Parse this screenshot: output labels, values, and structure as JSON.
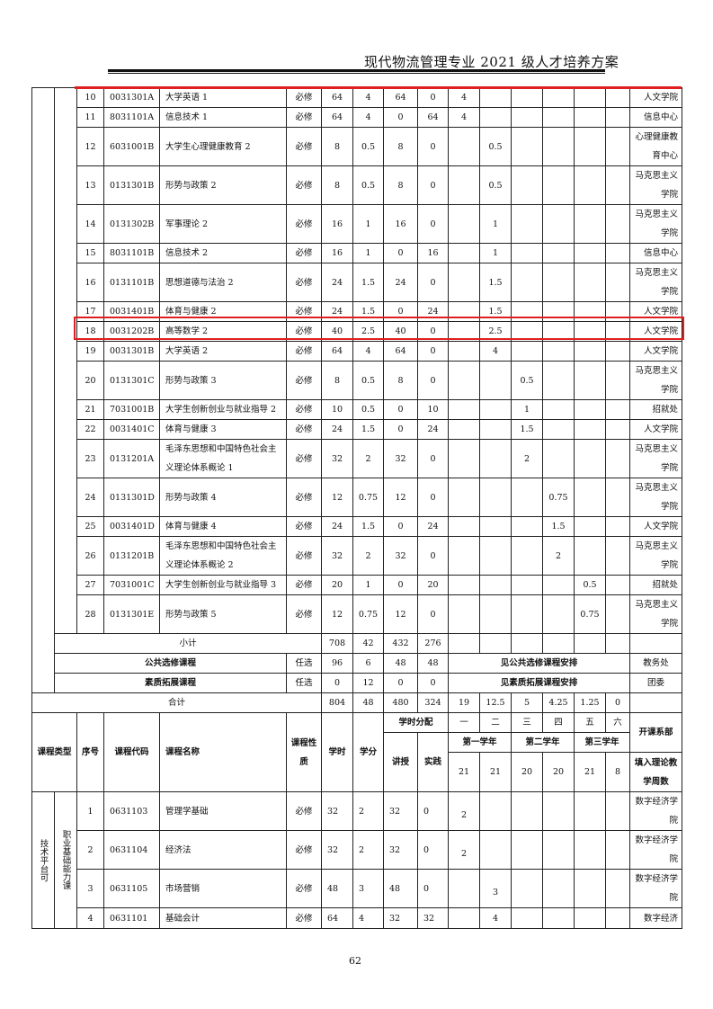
{
  "header": {
    "title": "现代物流管理专业 2021 级人才培养方案"
  },
  "page_number": "62",
  "colors": {
    "highlight": "#e02020"
  },
  "top_rows": [
    {
      "seq": "10",
      "code": "0031301A",
      "name": "大学英语 1",
      "nature": "必修",
      "hours": "64",
      "credits": "4",
      "lecture": "64",
      "practice": "0",
      "sem": [
        "4",
        "",
        "",
        "",
        "",
        ""
      ],
      "dept": "人文学院"
    },
    {
      "seq": "11",
      "code": "8031101A",
      "name": "信息技术 1",
      "nature": "必修",
      "hours": "64",
      "credits": "4",
      "lecture": "0",
      "practice": "64",
      "sem": [
        "4",
        "",
        "",
        "",
        "",
        ""
      ],
      "dept": "信息中心"
    },
    {
      "seq": "12",
      "code": "6031001B",
      "name": "大学生心理健康教育 2",
      "nature": "必修",
      "hours": "8",
      "credits": "0.5",
      "lecture": "8",
      "practice": "0",
      "sem": [
        "",
        "0.5",
        "",
        "",
        "",
        ""
      ],
      "dept": "心理健康教育中心"
    },
    {
      "seq": "13",
      "code": "0131301B",
      "name": "形势与政策 2",
      "nature": "必修",
      "hours": "8",
      "credits": "0.5",
      "lecture": "8",
      "practice": "0",
      "sem": [
        "",
        "0.5",
        "",
        "",
        "",
        ""
      ],
      "dept": "马克思主义学院"
    },
    {
      "seq": "14",
      "code": "0131302B",
      "name": "军事理论 2",
      "nature": "必修",
      "hours": "16",
      "credits": "1",
      "lecture": "16",
      "practice": "0",
      "sem": [
        "",
        "1",
        "",
        "",
        "",
        ""
      ],
      "dept": "马克思主义学院"
    },
    {
      "seq": "15",
      "code": "8031101B",
      "name": "信息技术 2",
      "nature": "必修",
      "hours": "16",
      "credits": "1",
      "lecture": "0",
      "practice": "16",
      "sem": [
        "",
        "1",
        "",
        "",
        "",
        ""
      ],
      "dept": "信息中心"
    },
    {
      "seq": "16",
      "code": "0131101B",
      "name": "思想道德与法治 2",
      "nature": "必修",
      "hours": "24",
      "credits": "1.5",
      "lecture": "24",
      "practice": "0",
      "sem": [
        "",
        "1.5",
        "",
        "",
        "",
        ""
      ],
      "dept": "马克思主义学院"
    },
    {
      "seq": "17",
      "code": "0031401B",
      "name": "体育与健康 2",
      "nature": "必修",
      "hours": "24",
      "credits": "1.5",
      "lecture": "0",
      "practice": "24",
      "sem": [
        "",
        "1.5",
        "",
        "",
        "",
        ""
      ],
      "dept": "人文学院"
    },
    {
      "seq": "18",
      "code": "0031202B",
      "name": "高等数学 2",
      "nature": "必修",
      "hours": "40",
      "credits": "2.5",
      "lecture": "40",
      "practice": "0",
      "sem": [
        "",
        "2.5",
        "",
        "",
        "",
        ""
      ],
      "dept": "人文学院"
    },
    {
      "seq": "19",
      "code": "0031301B",
      "name": "大学英语 2",
      "nature": "必修",
      "hours": "64",
      "credits": "4",
      "lecture": "64",
      "practice": "0",
      "sem": [
        "",
        "4",
        "",
        "",
        "",
        ""
      ],
      "dept": "人文学院"
    },
    {
      "seq": "20",
      "code": "0131301C",
      "name": "形势与政策 3",
      "nature": "必修",
      "hours": "8",
      "credits": "0.5",
      "lecture": "8",
      "practice": "0",
      "sem": [
        "",
        "",
        "0.5",
        "",
        "",
        ""
      ],
      "dept": "马克思主义学院"
    },
    {
      "seq": "21",
      "code": "7031001B",
      "name": "大学生创新创业与就业指导 2",
      "nature": "必修",
      "hours": "10",
      "credits": "0.5",
      "lecture": "0",
      "practice": "10",
      "sem": [
        "",
        "",
        "1",
        "",
        "",
        ""
      ],
      "dept": "招就处"
    },
    {
      "seq": "22",
      "code": "0031401C",
      "name": "体育与健康 3",
      "nature": "必修",
      "hours": "24",
      "credits": "1.5",
      "lecture": "0",
      "practice": "24",
      "sem": [
        "",
        "",
        "1.5",
        "",
        "",
        ""
      ],
      "dept": "人文学院"
    },
    {
      "seq": "23",
      "code": "0131201A",
      "name": "毛泽东思想和中国特色社会主义理论体系概论 1",
      "nature": "必修",
      "hours": "32",
      "credits": "2",
      "lecture": "32",
      "practice": "0",
      "sem": [
        "",
        "",
        "2",
        "",
        "",
        ""
      ],
      "dept": "马克思主义学院"
    },
    {
      "seq": "24",
      "code": "0131301D",
      "name": "形势与政策 4",
      "nature": "必修",
      "hours": "12",
      "credits": "0.75",
      "lecture": "12",
      "practice": "0",
      "sem": [
        "",
        "",
        "",
        "0.75",
        "",
        ""
      ],
      "dept": "马克思主义学院"
    },
    {
      "seq": "25",
      "code": "0031401D",
      "name": "体育与健康 4",
      "nature": "必修",
      "hours": "24",
      "credits": "1.5",
      "lecture": "0",
      "practice": "24",
      "sem": [
        "",
        "",
        "",
        "1.5",
        "",
        ""
      ],
      "dept": "人文学院"
    },
    {
      "seq": "26",
      "code": "0131201B",
      "name": "毛泽东思想和中国特色社会主义理论体系概论 2",
      "nature": "必修",
      "hours": "32",
      "credits": "2",
      "lecture": "32",
      "practice": "0",
      "sem": [
        "",
        "",
        "",
        "2",
        "",
        ""
      ],
      "dept": "马克思主义学院"
    },
    {
      "seq": "27",
      "code": "7031001C",
      "name": "大学生创新创业与就业指导 3",
      "nature": "必修",
      "hours": "20",
      "credits": "1",
      "lecture": "0",
      "practice": "20",
      "sem": [
        "",
        "",
        "",
        "",
        "0.5",
        ""
      ],
      "dept": "招就处"
    },
    {
      "seq": "28",
      "code": "0131301E",
      "name": "形势与政策 5",
      "nature": "必修",
      "hours": "12",
      "credits": "0.75",
      "lecture": "12",
      "practice": "0",
      "sem": [
        "",
        "",
        "",
        "",
        "0.75",
        ""
      ],
      "dept": "马克思主义学院"
    }
  ],
  "subtotal": {
    "label": "小计",
    "hours": "708",
    "credits": "42",
    "lecture": "432",
    "practice": "276"
  },
  "public_elective": {
    "label": "公共选修课程",
    "nature": "任选",
    "hours": "96",
    "credits": "6",
    "lecture": "48",
    "practice": "48",
    "note": "见公共选修课程安排",
    "dept": "教务处"
  },
  "quality_ext": {
    "label": "素质拓展课程",
    "nature": "任选",
    "hours": "0",
    "credits": "12",
    "lecture": "0",
    "practice": "0",
    "note": "见素质拓展课程安排",
    "dept": "团委"
  },
  "total": {
    "label": "合计",
    "hours": "804",
    "credits": "48",
    "lecture": "480",
    "practice": "324",
    "sem": [
      "19",
      "12.5",
      "5",
      "4.25",
      "1.25",
      "0"
    ]
  },
  "table_header": {
    "type": "课程类型",
    "seq": "序号",
    "code": "课程代码",
    "name": "课程名称",
    "nature": "课程性质",
    "hours": "学时",
    "credits": "学分",
    "distribution": "学时分配",
    "lecture": "讲授",
    "practice": "实践",
    "semesters": [
      "一",
      "二",
      "三",
      "四",
      "五",
      "六"
    ],
    "years": [
      "第一学年",
      "第二学年",
      "第三学年"
    ],
    "weeks": [
      "21",
      "21",
      "20",
      "20",
      "21",
      "8"
    ],
    "dept": "开课系部",
    "weeks_label": "填入理论教学周数"
  },
  "section2": {
    "category": "技术平台可",
    "subcategory": "职业基础能力课",
    "rows": [
      {
        "seq": "1",
        "code": "0631103",
        "name": "管理学基础",
        "nature": "必修",
        "hours": "32",
        "credits": "2",
        "lecture": "32",
        "practice": "0",
        "sem": [
          "2",
          "",
          "",
          "",
          "",
          ""
        ],
        "dept": "数字经济学院"
      },
      {
        "seq": "2",
        "code": "0631104",
        "name": "经济法",
        "nature": "必修",
        "hours": "32",
        "credits": "2",
        "lecture": "32",
        "practice": "0",
        "sem": [
          "2",
          "",
          "",
          "",
          "",
          ""
        ],
        "dept": "数字经济学院"
      },
      {
        "seq": "3",
        "code": "0631105",
        "name": "市场营销",
        "nature": "必修",
        "hours": "48",
        "credits": "3",
        "lecture": "48",
        "practice": "0",
        "sem": [
          "",
          "3",
          "",
          "",
          "",
          ""
        ],
        "dept": "数字经济学院"
      },
      {
        "seq": "4",
        "code": "0631101",
        "name": "基础会计",
        "nature": "必修",
        "hours": "64",
        "credits": "4",
        "lecture": "32",
        "practice": "32",
        "sem": [
          "",
          "4",
          "",
          "",
          "",
          ""
        ],
        "dept": "数字经济"
      }
    ]
  }
}
